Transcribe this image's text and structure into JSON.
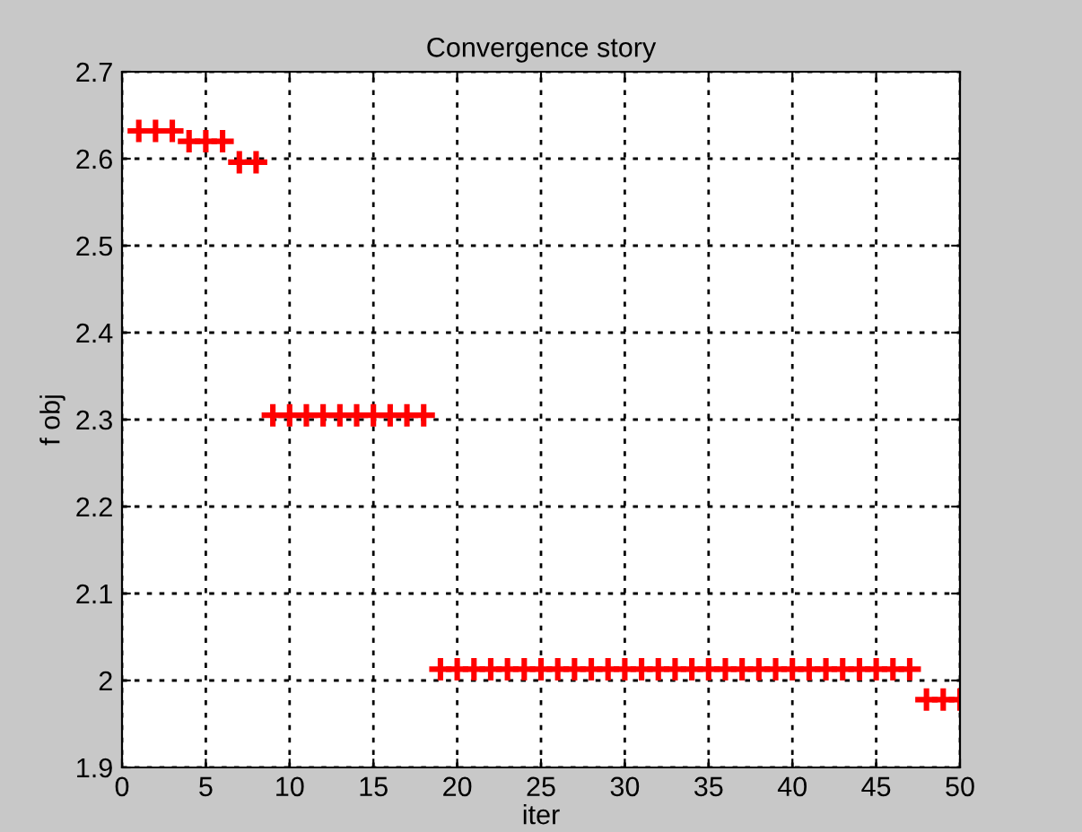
{
  "chart_data": {
    "type": "scatter",
    "title": "Convergence story",
    "xlabel": "iter",
    "ylabel": "f obj",
    "x": [
      1,
      2,
      3,
      4,
      5,
      6,
      7,
      8,
      9,
      10,
      11,
      12,
      13,
      14,
      15,
      16,
      17,
      18,
      19,
      20,
      21,
      22,
      23,
      24,
      25,
      26,
      27,
      28,
      29,
      30,
      31,
      32,
      33,
      34,
      35,
      36,
      37,
      38,
      39,
      40,
      41,
      42,
      43,
      44,
      45,
      46,
      47,
      48,
      49,
      50
    ],
    "series": [
      {
        "color": "#ff0000",
        "values": [
          2.632,
          2.632,
          2.632,
          2.62,
          2.62,
          2.62,
          2.596,
          2.596,
          2.305,
          2.305,
          2.305,
          2.305,
          2.305,
          2.305,
          2.305,
          2.305,
          2.305,
          2.305,
          2.013,
          2.013,
          2.013,
          2.013,
          2.013,
          2.013,
          2.013,
          2.013,
          2.013,
          2.013,
          2.013,
          2.013,
          2.013,
          2.013,
          2.013,
          2.013,
          2.013,
          2.013,
          2.013,
          2.013,
          2.013,
          2.013,
          2.013,
          2.013,
          2.013,
          2.013,
          2.013,
          2.013,
          2.013,
          1.978,
          1.978,
          1.978
        ]
      }
    ],
    "xlim": [
      0,
      50
    ],
    "xticks": [
      0,
      5,
      10,
      15,
      20,
      25,
      30,
      35,
      40,
      45,
      50
    ],
    "ylim": [
      1.9,
      2.7
    ],
    "yticks": [
      1.9,
      2,
      2.1,
      2.2,
      2.3,
      2.4,
      2.5,
      2.6,
      2.7
    ],
    "grid": true,
    "marker": "cross"
  }
}
